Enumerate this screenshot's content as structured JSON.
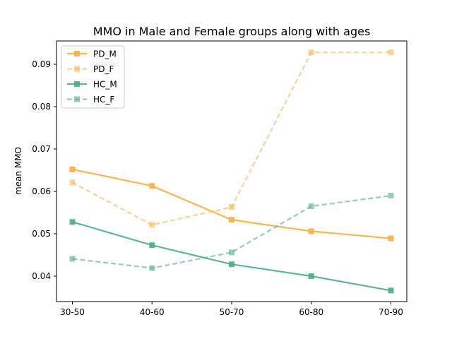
{
  "chart_data": {
    "type": "line",
    "title": "MMO in Male and Female groups along with ages",
    "xlabel": "",
    "ylabel": "mean MMO",
    "categories": [
      "30-50",
      "40-60",
      "50-70",
      "60-80",
      "70-90"
    ],
    "ylim": [
      0.034,
      0.0955
    ],
    "yticks": [
      0.04,
      0.05,
      0.06,
      0.07,
      0.08,
      0.09
    ],
    "ytick_labels": [
      "0.04",
      "0.05",
      "0.06",
      "0.07",
      "0.08",
      "0.09"
    ],
    "grid": false,
    "legend_position": "top-left",
    "series": [
      {
        "name": "PD_M",
        "values": [
          0.0652,
          0.0613,
          0.0533,
          0.0506,
          0.0489
        ],
        "color": "#f9b554",
        "dashed": false,
        "opacity": 1.0
      },
      {
        "name": "PD_F",
        "values": [
          0.0621,
          0.0521,
          0.0563,
          0.0928,
          0.0928
        ],
        "color": "#f9b554",
        "dashed": true,
        "opacity": 0.6
      },
      {
        "name": "HC_M",
        "values": [
          0.0528,
          0.0473,
          0.0428,
          0.04,
          0.0366
        ],
        "color": "#4caf80",
        "dashed": false,
        "opacity": 0.9
      },
      {
        "name": "HC_F",
        "values": [
          0.0441,
          0.0419,
          0.0456,
          0.0565,
          0.059
        ],
        "color": "#4caf80",
        "dashed": true,
        "opacity": 0.6
      }
    ]
  }
}
